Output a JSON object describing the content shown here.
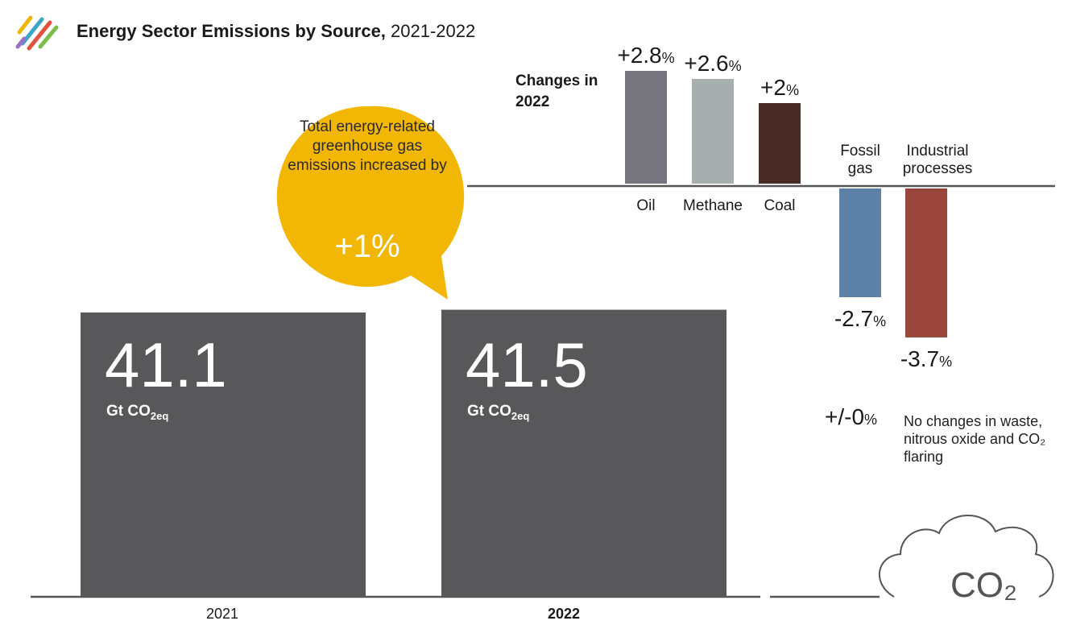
{
  "header": {
    "title_bold": "Energy Sector Emissions by Source,",
    "title_rest": " 2021-2022"
  },
  "callout": {
    "text": "Total energy-related greenhouse gas emissions increased by",
    "value": "+1%",
    "color": "#f2b705"
  },
  "changes_title": "Changes in 2022",
  "no_change_note": {
    "value": "+/-0",
    "unit": "%",
    "text": "No changes in waste, nitrous oxide and CO₂ flaring"
  },
  "cloud_label": "CO₂",
  "chart_data": [
    {
      "type": "bar",
      "title": "Energy Sector Emissions by Source, 2021-2022",
      "categories": [
        "2021",
        "2022"
      ],
      "values": [
        41.1,
        41.5
      ],
      "value_labels": [
        "41.1",
        "41.5"
      ],
      "unit": "Gt CO₂eq",
      "bar_color": "#58585a"
    },
    {
      "type": "bar",
      "title": "Changes in 2022",
      "categories": [
        "Oil",
        "Methane",
        "Coal",
        "Fossil gas",
        "Industrial processes"
      ],
      "values": [
        2.8,
        2.6,
        2.0,
        -2.7,
        -3.7
      ],
      "value_labels": [
        "+2.8",
        "+2.6",
        "+2",
        "-2.7",
        "-3.7"
      ],
      "unit": "%",
      "colors": [
        "#76757d",
        "#a6aeae",
        "#4a2c26",
        "#5c80a6",
        "#9b463c"
      ]
    }
  ]
}
